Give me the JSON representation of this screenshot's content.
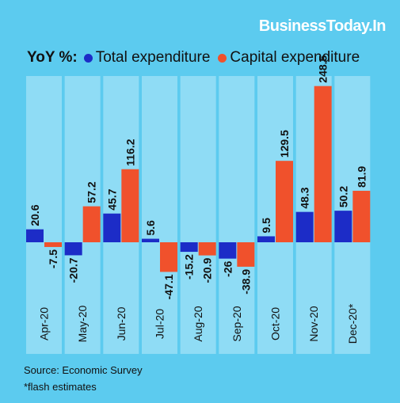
{
  "brand": "BusinessToday.In",
  "source": "Source: Economic Survey",
  "footnote": "*flash estimates",
  "colors": {
    "background": "#5ccbef",
    "column": "#8fdcf5",
    "total": "#1c2cc7",
    "capital": "#f0512c"
  },
  "chart_data": {
    "type": "bar",
    "legend_prefix": "YoY %:",
    "categories": [
      "Apr-20",
      "May-20",
      "Jun-20",
      "Jul-20",
      "Aug-20",
      "Sep-20",
      "Oct-20",
      "Nov-20",
      "Dec-20*"
    ],
    "series": [
      {
        "name": "Total expenditure",
        "color": "#1c2cc7",
        "values": [
          20.6,
          -20.7,
          45.7,
          5.6,
          -15.2,
          -26,
          9.5,
          48.3,
          50.2
        ],
        "labels": [
          "20.6",
          "-20.7",
          "45.7",
          "5.6",
          "-15.2",
          "-26",
          "9.5",
          "48.3",
          "50.2"
        ]
      },
      {
        "name": "Capital expenditure",
        "color": "#f0512c",
        "values": [
          -7.5,
          57.2,
          116.2,
          -47.1,
          -20.9,
          -38.9,
          129.5,
          248.5,
          81.9
        ],
        "labels": [
          "-7.5",
          "57.2",
          "116.2",
          "-47.1",
          "-20.9",
          "-38.9",
          "129.5",
          "248.5",
          "81.9"
        ]
      }
    ],
    "legend_position": "top-left",
    "grid": false
  }
}
